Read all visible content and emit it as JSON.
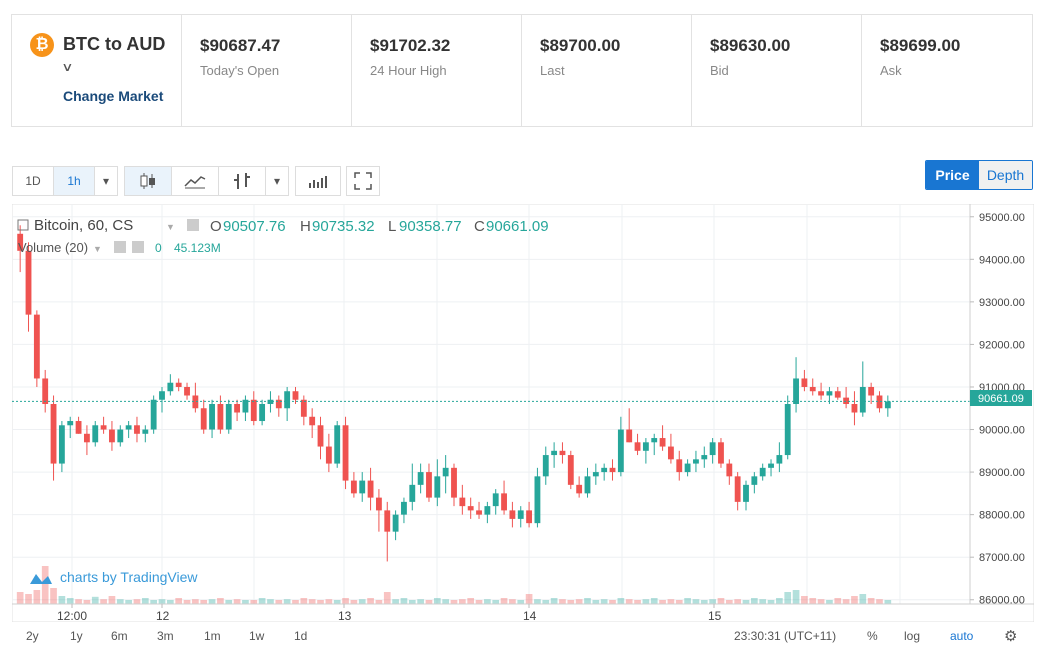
{
  "market": {
    "title": "BTC to AUD",
    "change_label": "Change Market",
    "coin_symbol": "₿"
  },
  "stats": [
    {
      "value": "$90687.47",
      "label": "Today's Open"
    },
    {
      "value": "$91702.32",
      "label": "24 Hour High"
    },
    {
      "value": "$89700.00",
      "label": "Last"
    },
    {
      "value": "$89630.00",
      "label": "Bid"
    },
    {
      "value": "$89699.00",
      "label": "Ask"
    }
  ],
  "toolbar": {
    "ranges": [
      "1D",
      "1h"
    ],
    "selected": "1h"
  },
  "view_toggle": {
    "price": "Price",
    "depth": "Depth",
    "selected": "Price"
  },
  "legend": {
    "symbol": "Bitcoin, 60, CS",
    "o_label": "O",
    "o": "90507.76",
    "h_label": "H",
    "h": "90735.32",
    "l_label": "L",
    "l": "90358.77",
    "c_label": "C",
    "c": "90661.09",
    "volume_label": "Volume (20)",
    "volume_a": "0",
    "volume_b": "45.123M"
  },
  "watermark": "charts by TradingView",
  "bottom": {
    "ranges": [
      "2y",
      "1y",
      "6m",
      "3m",
      "1m",
      "1w",
      "1d"
    ],
    "time": "23:30:31 (UTC+11)",
    "percent": "%",
    "log": "log",
    "auto": "auto"
  },
  "colors": {
    "up": "#26a69a",
    "down": "#ef5350",
    "accent": "#1976d2",
    "last_price": "#26a69a"
  },
  "chart_data": {
    "type": "candlestick",
    "y_ticks": [
      "95000.00",
      "94000.00",
      "93000.00",
      "92000.00",
      "91000.00",
      "90000.00",
      "89000.00",
      "88000.00",
      "87000.00",
      "86000.00"
    ],
    "ylim": [
      85900,
      95300
    ],
    "x_ticks": [
      "12:00",
      "12",
      "13",
      "14",
      "15"
    ],
    "last_price": "90661.09",
    "candles": [
      [
        94600,
        94800,
        93700,
        94200
      ],
      [
        94200,
        94400,
        92300,
        92700
      ],
      [
        92700,
        92800,
        91000,
        91200
      ],
      [
        91200,
        91400,
        90400,
        90600
      ],
      [
        90600,
        90800,
        88800,
        89200
      ],
      [
        89200,
        90200,
        89000,
        90100
      ],
      [
        90100,
        90300,
        89800,
        90200
      ],
      [
        90200,
        90300,
        89900,
        89900
      ],
      [
        89900,
        90100,
        89400,
        89700
      ],
      [
        89700,
        90200,
        89600,
        90100
      ],
      [
        90100,
        90300,
        89900,
        90000
      ],
      [
        90000,
        90200,
        89500,
        89700
      ],
      [
        89700,
        90100,
        89600,
        90000
      ],
      [
        90000,
        90200,
        89800,
        90100
      ],
      [
        90100,
        90300,
        89700,
        89900
      ],
      [
        89900,
        90100,
        89700,
        90000
      ],
      [
        90000,
        90800,
        89900,
        90700
      ],
      [
        90700,
        91000,
        90400,
        90900
      ],
      [
        90900,
        91300,
        90800,
        91100
      ],
      [
        91100,
        91200,
        90900,
        91000
      ],
      [
        91000,
        91100,
        90700,
        90800
      ],
      [
        90800,
        91100,
        90400,
        90500
      ],
      [
        90500,
        90700,
        89900,
        90000
      ],
      [
        90000,
        90700,
        89800,
        90600
      ],
      [
        90600,
        90800,
        89900,
        90000
      ],
      [
        90000,
        90700,
        89900,
        90600
      ],
      [
        90600,
        90700,
        90200,
        90400
      ],
      [
        90400,
        90800,
        90200,
        90700
      ],
      [
        90700,
        90900,
        90100,
        90200
      ],
      [
        90200,
        90700,
        90100,
        90600
      ],
      [
        90600,
        90900,
        90400,
        90700
      ],
      [
        90700,
        90800,
        90300,
        90500
      ],
      [
        90500,
        91000,
        90200,
        90900
      ],
      [
        90900,
        91000,
        90600,
        90700
      ],
      [
        90700,
        90800,
        90100,
        90300
      ],
      [
        90300,
        90500,
        89800,
        90100
      ],
      [
        90100,
        90300,
        89300,
        89600
      ],
      [
        89600,
        89900,
        89000,
        89200
      ],
      [
        89200,
        90200,
        89100,
        90100
      ],
      [
        90100,
        90300,
        88600,
        88800
      ],
      [
        88800,
        89000,
        88400,
        88500
      ],
      [
        88500,
        89000,
        88300,
        88800
      ],
      [
        88800,
        89100,
        88100,
        88400
      ],
      [
        88400,
        88600,
        87600,
        88100
      ],
      [
        88100,
        88300,
        86900,
        87600
      ],
      [
        87600,
        88100,
        87400,
        88000
      ],
      [
        88000,
        88400,
        87800,
        88300
      ],
      [
        88300,
        89200,
        88100,
        88700
      ],
      [
        88700,
        89200,
        88500,
        89000
      ],
      [
        89000,
        89200,
        88300,
        88400
      ],
      [
        88400,
        89300,
        88200,
        88900
      ],
      [
        88900,
        89400,
        88500,
        89100
      ],
      [
        89100,
        89200,
        88200,
        88400
      ],
      [
        88400,
        88700,
        88000,
        88200
      ],
      [
        88200,
        88400,
        87900,
        88100
      ],
      [
        88100,
        88300,
        87900,
        88000
      ],
      [
        88000,
        88300,
        87800,
        88200
      ],
      [
        88200,
        88600,
        88000,
        88500
      ],
      [
        88500,
        88800,
        88000,
        88100
      ],
      [
        88100,
        88300,
        87700,
        87900
      ],
      [
        87900,
        88200,
        87700,
        88100
      ],
      [
        88100,
        88300,
        87700,
        87800
      ],
      [
        87800,
        89100,
        87700,
        88900
      ],
      [
        88900,
        89600,
        88700,
        89400
      ],
      [
        89400,
        89700,
        89100,
        89500
      ],
      [
        89500,
        89700,
        89200,
        89400
      ],
      [
        89400,
        89500,
        88600,
        88700
      ],
      [
        88700,
        88900,
        88400,
        88500
      ],
      [
        88500,
        89100,
        88400,
        88900
      ],
      [
        88900,
        89200,
        88700,
        89000
      ],
      [
        89000,
        89200,
        88800,
        89100
      ],
      [
        89100,
        89300,
        88800,
        89000
      ],
      [
        89000,
        90300,
        88900,
        90000
      ],
      [
        90000,
        90500,
        89700,
        89700
      ],
      [
        89700,
        89900,
        89400,
        89500
      ],
      [
        89500,
        89800,
        89200,
        89700
      ],
      [
        89700,
        89900,
        89400,
        89800
      ],
      [
        89800,
        90100,
        89500,
        89600
      ],
      [
        89600,
        89900,
        89200,
        89300
      ],
      [
        89300,
        89500,
        88800,
        89000
      ],
      [
        89000,
        89300,
        88900,
        89200
      ],
      [
        89200,
        89500,
        89000,
        89300
      ],
      [
        89300,
        89600,
        89100,
        89400
      ],
      [
        89400,
        89800,
        89200,
        89700
      ],
      [
        89700,
        89800,
        89100,
        89200
      ],
      [
        89200,
        89300,
        88700,
        88900
      ],
      [
        88900,
        89000,
        88100,
        88300
      ],
      [
        88300,
        88800,
        88100,
        88700
      ],
      [
        88700,
        89000,
        88500,
        88900
      ],
      [
        88900,
        89200,
        88800,
        89100
      ],
      [
        89100,
        89300,
        88900,
        89200
      ],
      [
        89200,
        89700,
        89000,
        89400
      ],
      [
        89400,
        90800,
        89300,
        90600
      ],
      [
        90600,
        91700,
        90400,
        91200
      ],
      [
        91200,
        91400,
        90900,
        91000
      ],
      [
        91000,
        91200,
        90800,
        90900
      ],
      [
        90900,
        91100,
        90700,
        90800
      ],
      [
        90800,
        91000,
        90600,
        90900
      ],
      [
        90900,
        91000,
        90700,
        90750
      ],
      [
        90750,
        91000,
        90500,
        90600
      ],
      [
        90600,
        90900,
        90100,
        90400
      ],
      [
        90400,
        91600,
        90300,
        91000
      ],
      [
        91000,
        91100,
        90600,
        90800
      ],
      [
        90800,
        90900,
        90400,
        90500
      ],
      [
        90500,
        90800,
        90300,
        90661
      ]
    ],
    "volumes": [
      0.3,
      0.25,
      0.35,
      0.95,
      0.4,
      0.2,
      0.15,
      0.12,
      0.1,
      0.18,
      0.12,
      0.2,
      0.12,
      0.1,
      0.12,
      0.15,
      0.1,
      0.12,
      0.1,
      0.15,
      0.1,
      0.12,
      0.1,
      0.12,
      0.15,
      0.1,
      0.12,
      0.1,
      0.1,
      0.15,
      0.12,
      0.1,
      0.12,
      0.1,
      0.15,
      0.12,
      0.1,
      0.12,
      0.1,
      0.15,
      0.1,
      0.12,
      0.15,
      0.1,
      0.3,
      0.12,
      0.15,
      0.1,
      0.12,
      0.1,
      0.15,
      0.12,
      0.1,
      0.12,
      0.15,
      0.1,
      0.12,
      0.1,
      0.15,
      0.12,
      0.1,
      0.25,
      0.12,
      0.1,
      0.15,
      0.12,
      0.1,
      0.12,
      0.15,
      0.1,
      0.12,
      0.1,
      0.15,
      0.12,
      0.1,
      0.12,
      0.15,
      0.1,
      0.12,
      0.1,
      0.15,
      0.12,
      0.1,
      0.12,
      0.15,
      0.1,
      0.12,
      0.1,
      0.15,
      0.12,
      0.1,
      0.15,
      0.3,
      0.35,
      0.2,
      0.15,
      0.12,
      0.1,
      0.15,
      0.12,
      0.2,
      0.25,
      0.15,
      0.12,
      0.1
    ]
  }
}
